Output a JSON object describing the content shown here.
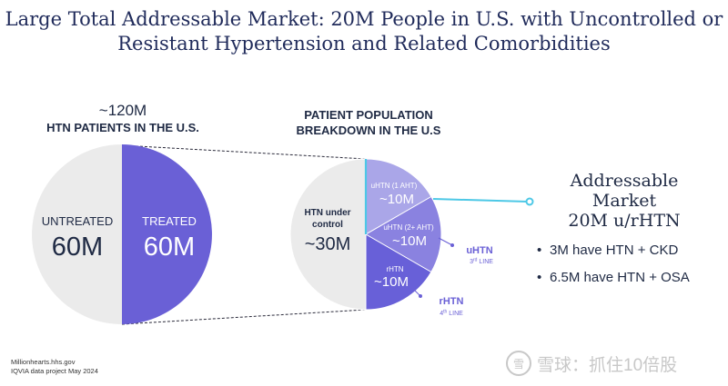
{
  "title": {
    "line1": "Large Total Addressable Market: 20M People in U.S. with Uncontrolled or",
    "line2": "Resistant Hypertension and Related Comorbidities"
  },
  "left_header": {
    "big": "~120M",
    "small": "HTN PATIENTS IN THE U.S."
  },
  "mid_header": {
    "line1": "PATIENT POPULATION",
    "line2": "BREAKDOWN IN THE U.S"
  },
  "colors": {
    "untreated": "#ebebeb",
    "treated": "#6a60d6",
    "uhtn1": "#aaa6e8",
    "uhtn2": "#8a82e0",
    "rhtn": "#6860d8",
    "highlight": "#4dc8e6",
    "dark": "#1f2a44"
  },
  "chart_data": [
    {
      "type": "pie",
      "title": "~120M HTN PATIENTS IN THE U.S.",
      "slices": [
        {
          "label": "UNTREATED",
          "value_label": "60M",
          "value": 60
        },
        {
          "label": "TREATED",
          "value_label": "60M",
          "value": 60
        }
      ]
    },
    {
      "type": "pie",
      "title": "PATIENT POPULATION BREAKDOWN IN THE U.S",
      "slices": [
        {
          "label": "HTN under control",
          "label_line1": "HTN under",
          "label_line2": "control",
          "value_label": "~30M",
          "value": 30
        },
        {
          "label": "uHTN (1 AHT)",
          "value_label": "~10M",
          "value": 10
        },
        {
          "label": "uHTN (2+ AHT)",
          "value_label": "~10M",
          "value": 10
        },
        {
          "label": "rHTN",
          "value_label": "~10M",
          "value": 10
        }
      ],
      "annotations": [
        {
          "text": "uHTN",
          "sub": "3rd LINE",
          "sup_num": "3",
          "sup": "rd",
          "rest": " LINE"
        },
        {
          "text": "rHTN",
          "sub": "4th LINE",
          "sup_num": "4",
          "sup": "th",
          "rest": " LINE"
        }
      ]
    }
  ],
  "addressable": {
    "line1": "Addressable",
    "line2": "Market",
    "line3": "20M u/rHTN",
    "bullets": [
      "3M have HTN + CKD",
      "6.5M have HTN + OSA"
    ]
  },
  "source": {
    "line1": "Millionhearts.hhs.gov",
    "line2": "IQVIA data project May 2024"
  },
  "watermark": {
    "icon_text": "雪",
    "text": "雪球：抓住10倍股"
  }
}
